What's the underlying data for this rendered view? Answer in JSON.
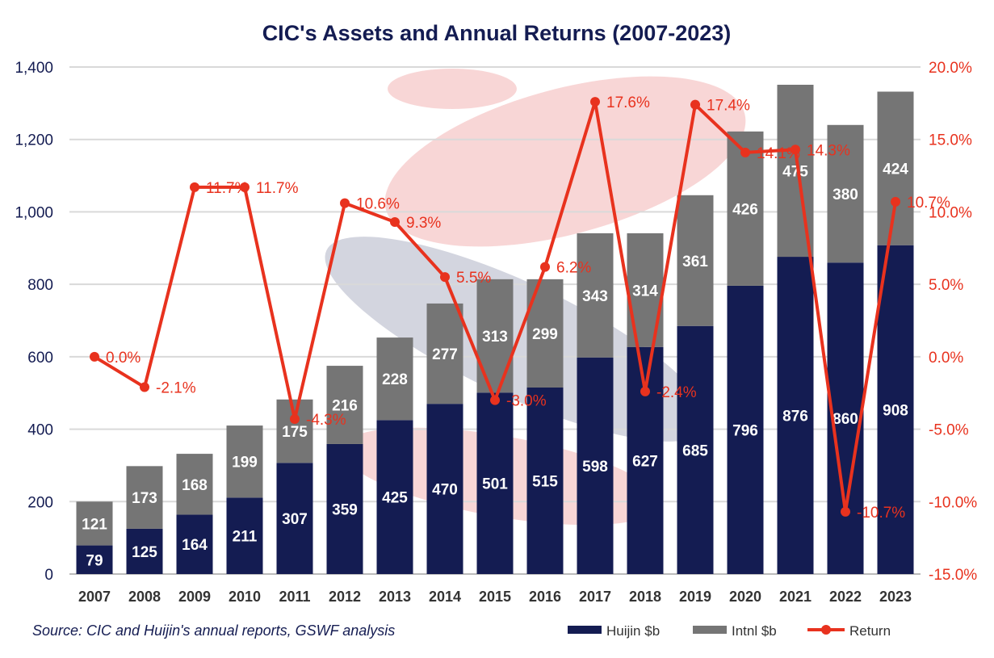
{
  "chart_data": {
    "type": "bar+line",
    "title": "CIC's Assets and Annual Returns (2007-2023)",
    "source": "Source: CIC and Huijin's annual reports, GSWF analysis",
    "categories": [
      "2007",
      "2008",
      "2009",
      "2010",
      "2011",
      "2012",
      "2013",
      "2014",
      "2015",
      "2016",
      "2017",
      "2018",
      "2019",
      "2020",
      "2021",
      "2022",
      "2023"
    ],
    "series": [
      {
        "name": "Huijin $b",
        "type": "stacked-bar",
        "axis": "left",
        "color": "#141c52",
        "values": [
          79,
          125,
          164,
          211,
          307,
          359,
          425,
          470,
          501,
          515,
          598,
          627,
          685,
          796,
          876,
          860,
          908
        ]
      },
      {
        "name": "Intnl $b",
        "type": "stacked-bar",
        "axis": "left",
        "color": "#757575",
        "values": [
          121,
          173,
          168,
          199,
          175,
          216,
          228,
          277,
          313,
          299,
          343,
          314,
          361,
          426,
          475,
          380,
          424
        ]
      },
      {
        "name": "Return",
        "type": "line",
        "axis": "right",
        "color": "#e8321e",
        "values": [
          0.0,
          -2.1,
          11.7,
          11.7,
          -4.3,
          10.6,
          9.3,
          5.5,
          -3.0,
          6.2,
          17.6,
          -2.4,
          17.4,
          14.1,
          14.3,
          -10.7,
          10.7
        ]
      }
    ],
    "left_axis": {
      "ylim": [
        0,
        1400
      ],
      "ticks": [
        "0",
        "200",
        "400",
        "600",
        "800",
        "1,000",
        "1,200",
        "1,400"
      ],
      "color": "#141c52"
    },
    "right_axis": {
      "ylim": [
        -15,
        20
      ],
      "ticks": [
        "-15.0%",
        "-10.0%",
        "-5.0%",
        "0.0%",
        "5.0%",
        "10.0%",
        "15.0%",
        "20.0%"
      ],
      "color": "#e8321e"
    },
    "grid": true,
    "legend": "bottom-right"
  }
}
